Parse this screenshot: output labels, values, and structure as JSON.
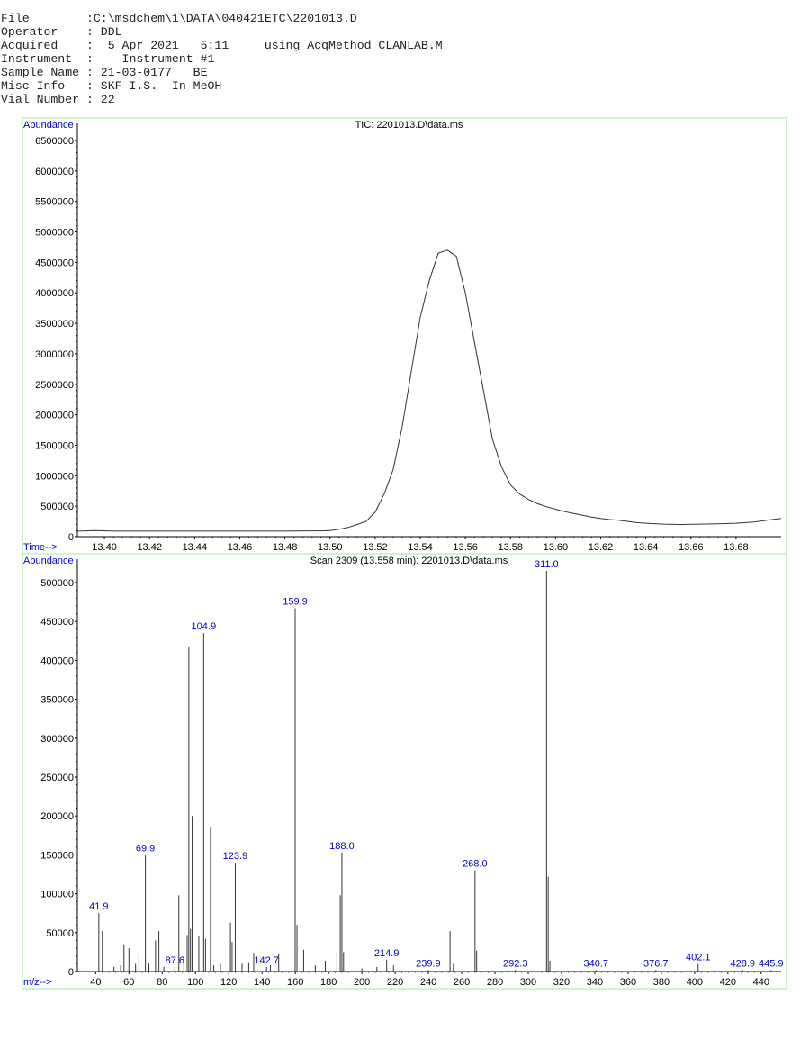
{
  "header": [
    {
      "label": "File        ",
      "value": ":C:\\msdchem\\1\\DATA\\040421ETC\\2201013.D"
    },
    {
      "label": "Operator    ",
      "value": ": DDL"
    },
    {
      "label": "Acquired    ",
      "value": ":  5 Apr 2021   5:11     using AcqMethod CLANLAB.M"
    },
    {
      "label": "Instrument  ",
      "value": ":    Instrument #1"
    },
    {
      "label": "Sample Name ",
      "value": ": 21-03-0177   BE"
    },
    {
      "label": "Misc Info   ",
      "value": ": SKF I.S.  In MeOH"
    },
    {
      "label": "Vial Number ",
      "value": ": 22"
    }
  ],
  "chart_data": [
    {
      "type": "line",
      "title": "TIC: 2201013.D\\data.ms",
      "ylabel": "Abundance",
      "xlabel": "Time-->",
      "xlim": [
        13.388,
        13.7
      ],
      "ylim": [
        0,
        6500000
      ],
      "x_ticks": [
        "13.40",
        "13.42",
        "13.44",
        "13.46",
        "13.48",
        "13.50",
        "13.52",
        "13.54",
        "13.56",
        "13.58",
        "13.60",
        "13.62",
        "13.64",
        "13.66",
        "13.68"
      ],
      "x_tick_values": [
        13.4,
        13.42,
        13.44,
        13.46,
        13.48,
        13.5,
        13.52,
        13.54,
        13.56,
        13.58,
        13.6,
        13.62,
        13.64,
        13.66,
        13.68
      ],
      "y_ticks": [
        "0",
        "500000",
        "1000000",
        "1500000",
        "2000000",
        "2500000",
        "3000000",
        "3500000",
        "4000000",
        "4500000",
        "5000000",
        "5500000",
        "6000000",
        "6500000"
      ],
      "y_tick_values": [
        0,
        500000,
        1000000,
        1500000,
        2000000,
        2500000,
        3000000,
        3500000,
        4000000,
        4500000,
        5000000,
        5500000,
        6000000,
        6500000
      ],
      "x": [
        13.388,
        13.396,
        13.404,
        13.42,
        13.44,
        13.46,
        13.48,
        13.49,
        13.496,
        13.5,
        13.504,
        13.508,
        13.512,
        13.516,
        13.52,
        13.524,
        13.528,
        13.532,
        13.536,
        13.54,
        13.544,
        13.548,
        13.552,
        13.556,
        13.56,
        13.564,
        13.568,
        13.572,
        13.576,
        13.58,
        13.584,
        13.588,
        13.592,
        13.596,
        13.6,
        13.604,
        13.608,
        13.612,
        13.616,
        13.62,
        13.624,
        13.628,
        13.632,
        13.636,
        13.64,
        13.648,
        13.656,
        13.664,
        13.672,
        13.68,
        13.688,
        13.692,
        13.696,
        13.7
      ],
      "y": [
        90000,
        100000,
        90000,
        90000,
        90000,
        90000,
        90000,
        95000,
        95000,
        100000,
        120000,
        150000,
        200000,
        250000,
        400000,
        700000,
        1100000,
        1800000,
        2700000,
        3600000,
        4200000,
        4650000,
        4700000,
        4600000,
        4000000,
        3200000,
        2400000,
        1600000,
        1150000,
        850000,
        700000,
        610000,
        540000,
        490000,
        450000,
        410000,
        380000,
        350000,
        320000,
        300000,
        280000,
        270000,
        250000,
        230000,
        220000,
        205000,
        200000,
        205000,
        210000,
        220000,
        240000,
        260000,
        280000,
        300000
      ]
    },
    {
      "type": "bar",
      "title": "Scan 2309 (13.558 min): 2201013.D\\data.ms",
      "ylabel": "Abundance",
      "xlabel": "m/z-->",
      "xlim": [
        29,
        452
      ],
      "ylim": [
        0,
        525000
      ],
      "x_ticks": [
        "40",
        "60",
        "80",
        "100",
        "120",
        "140",
        "160",
        "180",
        "200",
        "220",
        "240",
        "260",
        "280",
        "300",
        "320",
        "340",
        "360",
        "380",
        "400",
        "420",
        "440"
      ],
      "x_tick_values": [
        40,
        60,
        80,
        100,
        120,
        140,
        160,
        180,
        200,
        220,
        240,
        260,
        280,
        300,
        320,
        340,
        360,
        380,
        400,
        420,
        440
      ],
      "y_ticks": [
        "0",
        "50000",
        "100000",
        "150000",
        "200000",
        "250000",
        "300000",
        "350000",
        "400000",
        "450000",
        "500000"
      ],
      "y_tick_values": [
        0,
        50000,
        100000,
        150000,
        200000,
        250000,
        300000,
        350000,
        400000,
        450000,
        500000
      ],
      "peaks": [
        {
          "mz": 41.9,
          "abundance": 75000,
          "label": "41.9"
        },
        {
          "mz": 44.0,
          "abundance": 52000
        },
        {
          "mz": 51.0,
          "abundance": 6000
        },
        {
          "mz": 55.0,
          "abundance": 8000
        },
        {
          "mz": 57.0,
          "abundance": 35000
        },
        {
          "mz": 60.0,
          "abundance": 30000
        },
        {
          "mz": 64.0,
          "abundance": 10000
        },
        {
          "mz": 66.0,
          "abundance": 22000
        },
        {
          "mz": 69.9,
          "abundance": 150000,
          "label": "69.9"
        },
        {
          "mz": 72.0,
          "abundance": 10000
        },
        {
          "mz": 76.0,
          "abundance": 40000
        },
        {
          "mz": 78.0,
          "abundance": 52000
        },
        {
          "mz": 81.0,
          "abundance": 6000
        },
        {
          "mz": 87.6,
          "abundance": 6000,
          "label": "87.6"
        },
        {
          "mz": 90.0,
          "abundance": 98000
        },
        {
          "mz": 93.0,
          "abundance": 20000
        },
        {
          "mz": 95.0,
          "abundance": 47000
        },
        {
          "mz": 96.0,
          "abundance": 417000
        },
        {
          "mz": 97.0,
          "abundance": 55000
        },
        {
          "mz": 98.0,
          "abundance": 200000
        },
        {
          "mz": 102.0,
          "abundance": 45000
        },
        {
          "mz": 104.9,
          "abundance": 435000,
          "label": "104.9"
        },
        {
          "mz": 106.0,
          "abundance": 42000
        },
        {
          "mz": 109.0,
          "abundance": 185000
        },
        {
          "mz": 111.0,
          "abundance": 8000
        },
        {
          "mz": 115.0,
          "abundance": 10000
        },
        {
          "mz": 121.0,
          "abundance": 63000
        },
        {
          "mz": 122.0,
          "abundance": 38000
        },
        {
          "mz": 123.9,
          "abundance": 140000,
          "label": "123.9"
        },
        {
          "mz": 128.0,
          "abundance": 10000
        },
        {
          "mz": 132.0,
          "abundance": 12000
        },
        {
          "mz": 135.0,
          "abundance": 24000
        },
        {
          "mz": 142.7,
          "abundance": 6000,
          "label": "142.7"
        },
        {
          "mz": 145.0,
          "abundance": 8000
        },
        {
          "mz": 150.0,
          "abundance": 22000
        },
        {
          "mz": 159.9,
          "abundance": 467000,
          "label": "159.9"
        },
        {
          "mz": 161.0,
          "abundance": 60000
        },
        {
          "mz": 165.0,
          "abundance": 28000
        },
        {
          "mz": 172.0,
          "abundance": 8000
        },
        {
          "mz": 178.0,
          "abundance": 14000
        },
        {
          "mz": 185.0,
          "abundance": 25000
        },
        {
          "mz": 187.0,
          "abundance": 98000
        },
        {
          "mz": 188.0,
          "abundance": 153000,
          "label": "188.0"
        },
        {
          "mz": 189.0,
          "abundance": 25000
        },
        {
          "mz": 200.0,
          "abundance": 4000
        },
        {
          "mz": 209.0,
          "abundance": 6000
        },
        {
          "mz": 214.9,
          "abundance": 15000,
          "label": "214.9"
        },
        {
          "mz": 219.0,
          "abundance": 8000
        },
        {
          "mz": 239.9,
          "abundance": 2000,
          "label": "239.9"
        },
        {
          "mz": 253.0,
          "abundance": 52000
        },
        {
          "mz": 255.0,
          "abundance": 10000
        },
        {
          "mz": 268.0,
          "abundance": 130000,
          "label": "268.0"
        },
        {
          "mz": 269.0,
          "abundance": 27000
        },
        {
          "mz": 292.3,
          "abundance": 2000,
          "label": "292.3"
        },
        {
          "mz": 311.0,
          "abundance": 515000,
          "label": "311.0"
        },
        {
          "mz": 312.0,
          "abundance": 122000
        },
        {
          "mz": 313.0,
          "abundance": 14000
        },
        {
          "mz": 340.7,
          "abundance": 2000,
          "label": "340.7"
        },
        {
          "mz": 376.7,
          "abundance": 2000,
          "label": "376.7"
        },
        {
          "mz": 402.1,
          "abundance": 10000,
          "label": "402.1"
        },
        {
          "mz": 428.9,
          "abundance": 2000,
          "label": "428.9"
        },
        {
          "mz": 445.9,
          "abundance": 2000,
          "label": "445.9"
        }
      ]
    }
  ]
}
